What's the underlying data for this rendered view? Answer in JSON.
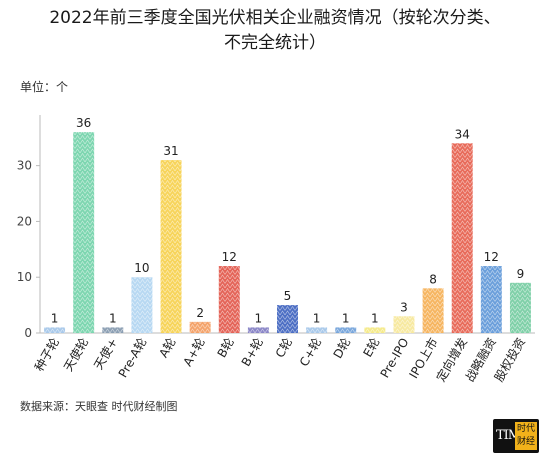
{
  "chart_data": {
    "type": "bar",
    "title_line1": "2022年前三季度全国光伏相关企业融资情况（按轮次分类、",
    "title_line2": "不完全统计）",
    "unit_label": "单位：个",
    "source": "数据来源：天眼查 时代财经制图",
    "categories": [
      "种子轮",
      "天使轮",
      "天使+",
      "Pre-A轮",
      "A轮",
      "A+轮",
      "B轮",
      "B+轮",
      "C轮",
      "C+轮",
      "D轮",
      "E轮",
      "Pre-IPO",
      "IPO上市",
      "定向增发",
      "战略融资",
      "股权投资"
    ],
    "values": [
      1,
      36,
      1,
      10,
      31,
      2,
      12,
      1,
      5,
      1,
      1,
      1,
      3,
      8,
      34,
      12,
      9
    ],
    "colors": [
      "#a9c9ea",
      "#7dd6b0",
      "#8c9fb3",
      "#b7d8f2",
      "#f7d45a",
      "#f4a36b",
      "#e46458",
      "#8a86c7",
      "#4d6fc4",
      "#a9c9ea",
      "#7aa7dc",
      "#f5ea8a",
      "#f7e9a0",
      "#f6b560",
      "#e86b5a",
      "#6b9fdb",
      "#7fd0a8"
    ],
    "ylim": [
      0,
      38
    ],
    "yticks": [
      0,
      10,
      20,
      30
    ],
    "grid": false
  },
  "logo": {
    "left": "TIME",
    "right": "时代财经"
  }
}
